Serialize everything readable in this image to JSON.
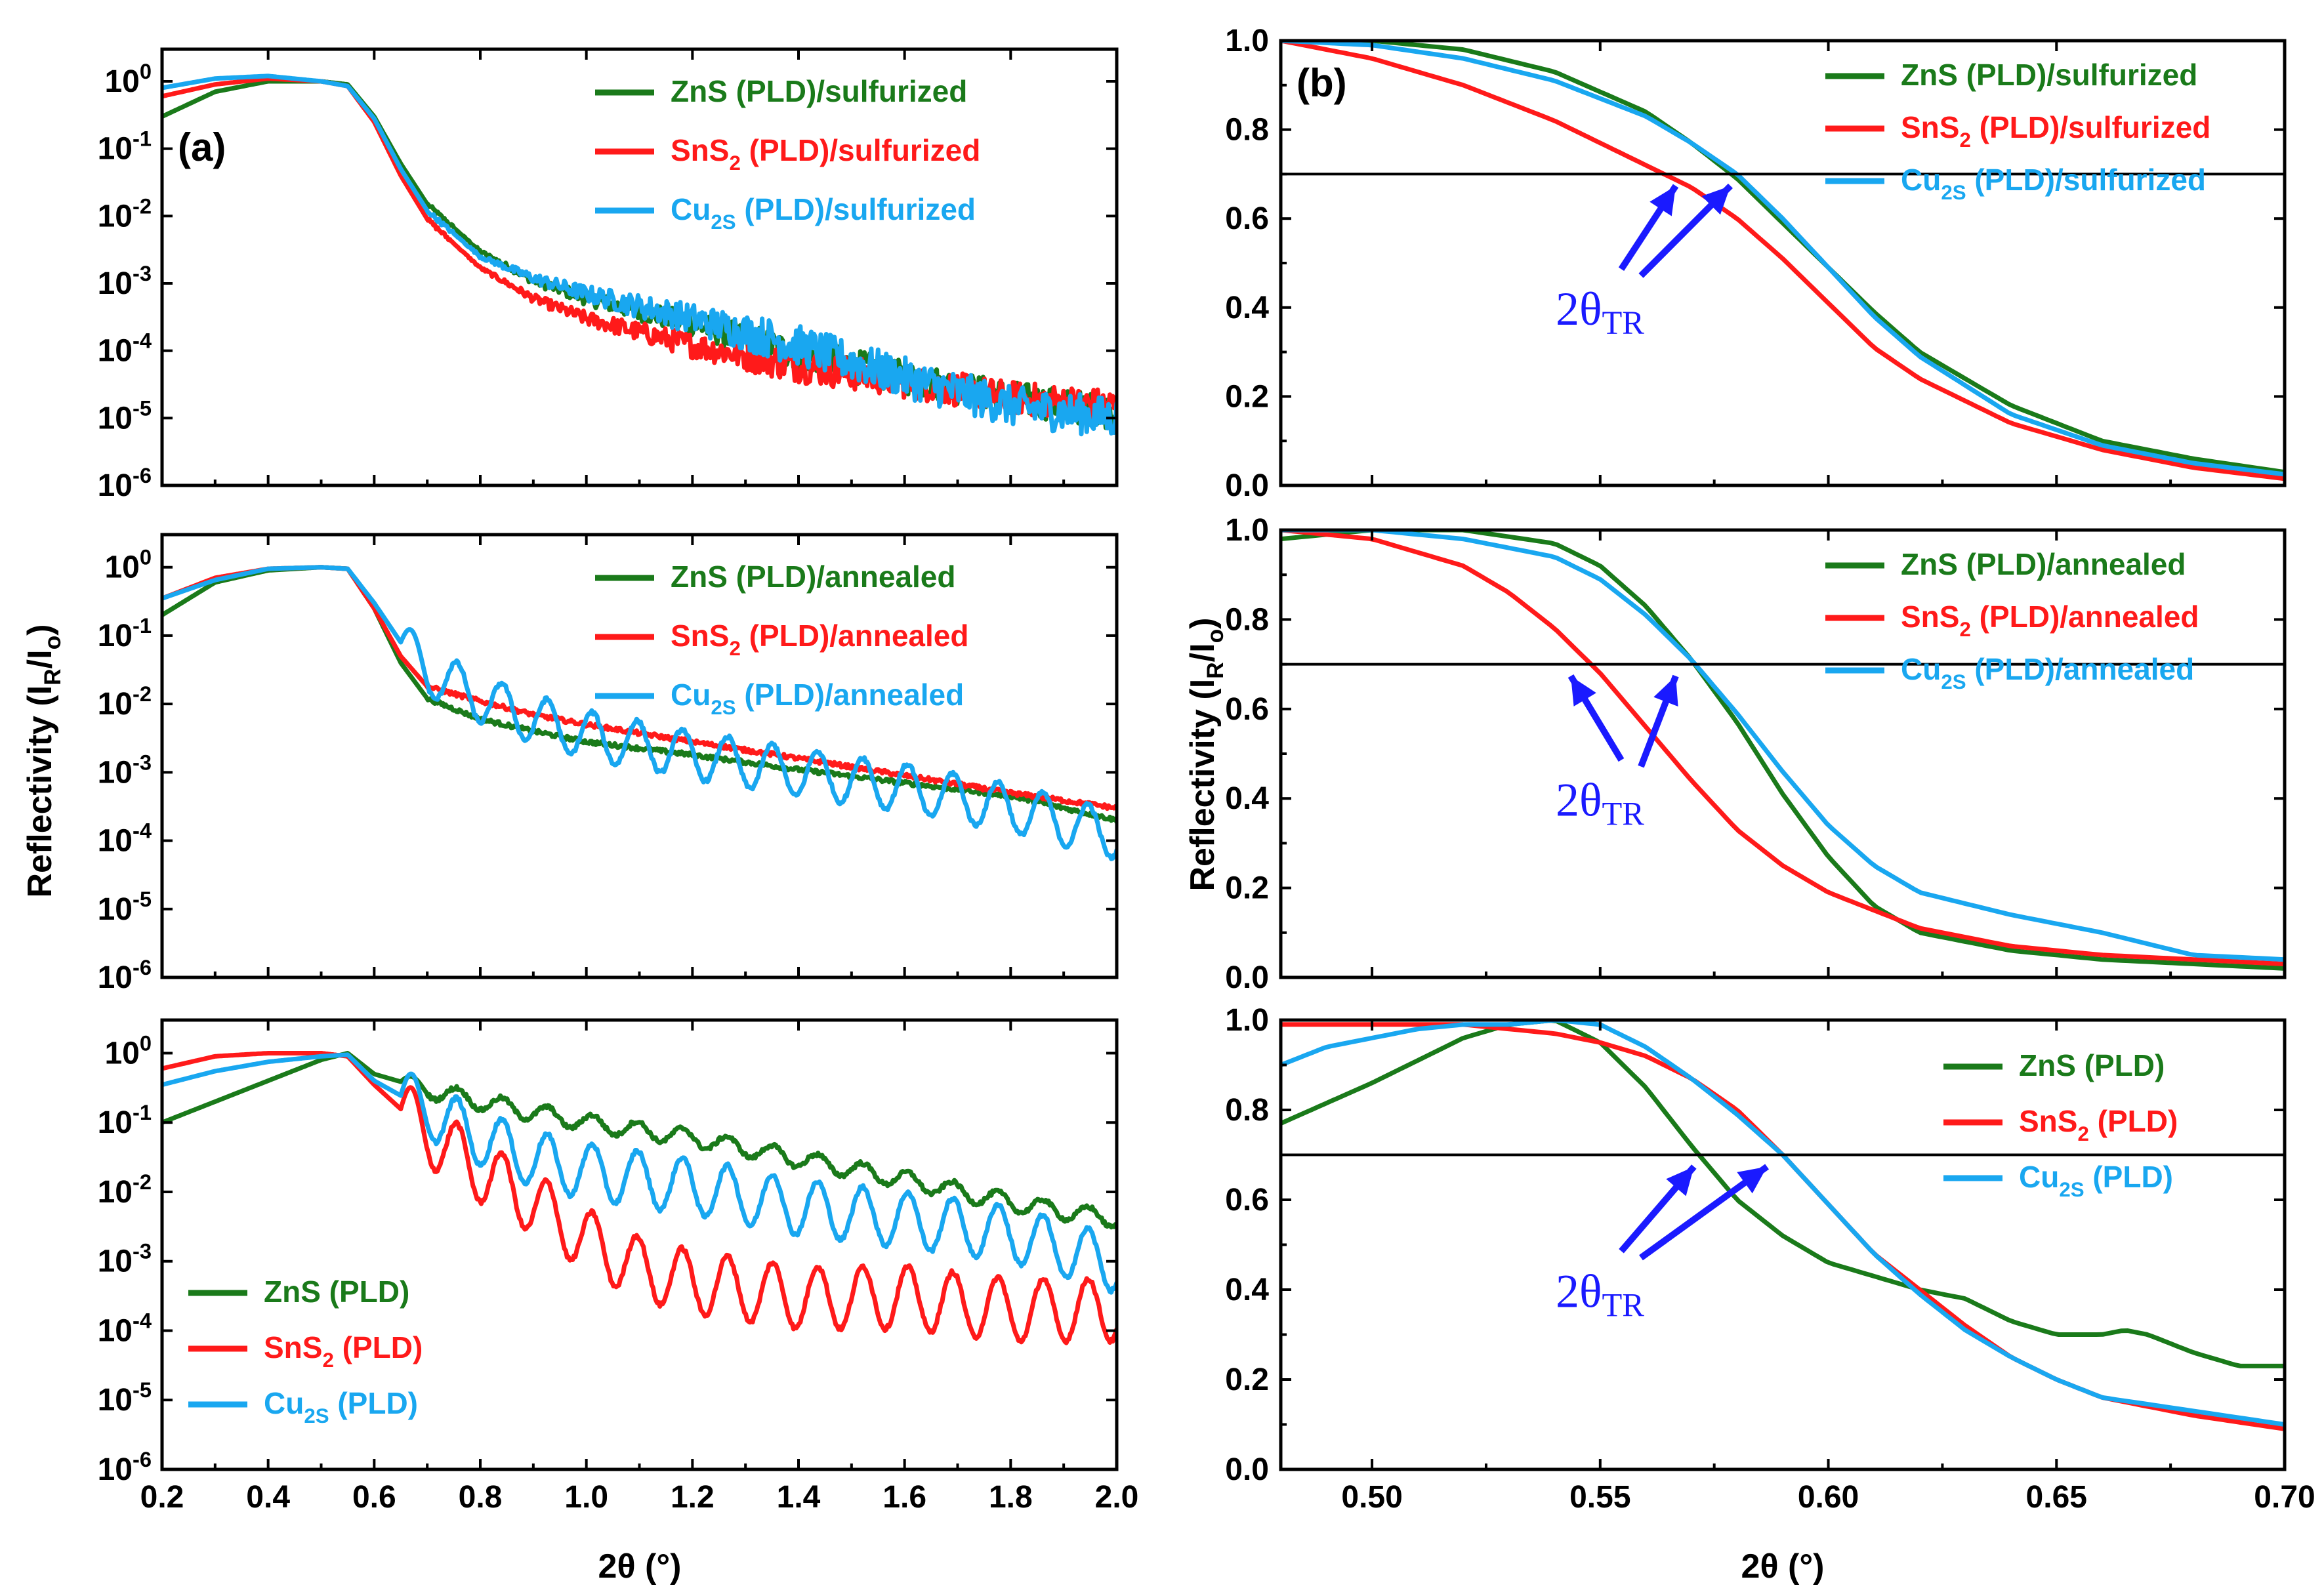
{
  "figure": {
    "xlabel_left": "2θ (°)",
    "xlabel_right": "2θ (°)",
    "ylabel_left": "Reflectivity (I_R/I_o)",
    "ylabel_right": "Reflectivity (I_R/I_o)",
    "colors": {
      "ZnS": "#1a7a1a",
      "SnS2": "#ff1a1a",
      "Cu2S": "#19a7f0",
      "annotation": "#1a1aff"
    }
  },
  "chart_data": [
    {
      "id": "a1",
      "panel_label": "(a)",
      "type": "line",
      "yscale": "log",
      "xlim": [
        0.2,
        2.0
      ],
      "ylim": [
        1e-06,
        3
      ],
      "xticks": [
        0.2,
        0.4,
        0.6,
        0.8,
        1.0,
        1.2,
        1.4,
        1.6,
        1.8,
        2.0
      ],
      "yticks": [
        1e-06,
        1e-05,
        0.0001,
        0.001,
        0.01,
        0.1,
        1
      ],
      "ytick_labels": [
        "10^-6",
        "10^-5",
        "10^-4",
        "10^-3",
        "10^-2",
        "10^-1",
        "10^0"
      ],
      "legend_position": "top-right",
      "series": [
        {
          "name": "ZnS",
          "label": "ZnS   (PLD)/sulfurized",
          "color": "ZnS",
          "x": [
            0.2,
            0.3,
            0.4,
            0.5,
            0.55,
            0.6,
            0.65,
            0.7,
            0.8,
            0.9,
            1.0,
            1.2,
            1.4,
            1.6,
            1.8,
            2.0
          ],
          "y": [
            0.3,
            0.7,
            1.0,
            1.0,
            0.9,
            0.3,
            0.06,
            0.015,
            0.003,
            0.0011,
            0.0006,
            0.00025,
            9e-05,
            4e-05,
            2e-05,
            1.2e-05
          ],
          "noise": 0.25
        },
        {
          "name": "SnS2",
          "label": "SnS_2 (PLD)/sulfurized",
          "color": "SnS2",
          "x": [
            0.2,
            0.3,
            0.4,
            0.5,
            0.55,
            0.6,
            0.65,
            0.7,
            0.8,
            0.9,
            1.0,
            1.2,
            1.4,
            1.6,
            1.8,
            2.0
          ],
          "y": [
            0.6,
            0.9,
            1.1,
            1.0,
            0.85,
            0.25,
            0.04,
            0.009,
            0.0017,
            0.0006,
            0.0003,
            0.00012,
            6e-05,
            3.5e-05,
            2e-05,
            1.5e-05
          ],
          "noise": 0.25
        },
        {
          "name": "Cu2S",
          "label": "Cu_2S (PLD)/sulfurized",
          "color": "Cu2S",
          "x": [
            0.2,
            0.3,
            0.4,
            0.5,
            0.55,
            0.6,
            0.65,
            0.7,
            0.8,
            0.9,
            1.0,
            1.2,
            1.4,
            1.6,
            1.8,
            2.0
          ],
          "y": [
            0.8,
            1.1,
            1.2,
            1.0,
            0.85,
            0.28,
            0.05,
            0.012,
            0.0025,
            0.0012,
            0.0007,
            0.0003,
            0.00012,
            4e-05,
            1.5e-05,
            1e-05
          ],
          "noise": 0.3
        }
      ]
    },
    {
      "id": "b1",
      "panel_label": "(b)",
      "type": "line",
      "yscale": "linear",
      "xlim": [
        0.48,
        0.7
      ],
      "ylim": [
        0.0,
        1.0
      ],
      "yticks": [
        0.0,
        0.2,
        0.4,
        0.6,
        0.8,
        1.0
      ],
      "ytick_labels": [
        "0.0",
        "0.2",
        "0.4",
        "0.6",
        "0.8",
        "1.0"
      ],
      "xticks": [
        0.5,
        0.55,
        0.6,
        0.65,
        0.7
      ],
      "hline": 0.7,
      "annotation": "2θ_TR",
      "arrow_targets": [
        [
          0.568,
          0.7
        ],
        [
          0.58,
          0.7
        ]
      ],
      "legend_position": "top-right",
      "series": [
        {
          "name": "ZnS",
          "label": "ZnS   (PLD)/sulfurized",
          "color": "ZnS",
          "x": [
            0.48,
            0.5,
            0.52,
            0.54,
            0.56,
            0.57,
            0.58,
            0.59,
            0.6,
            0.61,
            0.62,
            0.64,
            0.66,
            0.68,
            0.7
          ],
          "y": [
            1.0,
            1.0,
            0.98,
            0.93,
            0.84,
            0.77,
            0.69,
            0.59,
            0.49,
            0.39,
            0.3,
            0.18,
            0.1,
            0.06,
            0.03
          ]
        },
        {
          "name": "SnS2",
          "label": "SnS_2 (PLD)/sulfurized",
          "color": "SnS2",
          "x": [
            0.48,
            0.5,
            0.52,
            0.54,
            0.55,
            0.56,
            0.57,
            0.58,
            0.59,
            0.6,
            0.61,
            0.62,
            0.64,
            0.66,
            0.68,
            0.7
          ],
          "y": [
            1.0,
            0.96,
            0.9,
            0.82,
            0.77,
            0.72,
            0.67,
            0.6,
            0.51,
            0.41,
            0.31,
            0.24,
            0.14,
            0.08,
            0.04,
            0.015
          ]
        },
        {
          "name": "Cu2S",
          "label": "Cu_2S (PLD)/sulfurized",
          "color": "Cu2S",
          "x": [
            0.48,
            0.5,
            0.52,
            0.54,
            0.56,
            0.57,
            0.58,
            0.59,
            0.6,
            0.61,
            0.62,
            0.64,
            0.66,
            0.68,
            0.7
          ],
          "y": [
            1.0,
            0.99,
            0.96,
            0.91,
            0.83,
            0.77,
            0.7,
            0.6,
            0.49,
            0.38,
            0.29,
            0.16,
            0.09,
            0.05,
            0.025
          ]
        }
      ]
    },
    {
      "id": "a2",
      "panel_label": "",
      "type": "line",
      "yscale": "log",
      "xlim": [
        0.2,
        2.0
      ],
      "ylim": [
        1e-06,
        3
      ],
      "xticks": [
        0.2,
        0.4,
        0.6,
        0.8,
        1.0,
        1.2,
        1.4,
        1.6,
        1.8,
        2.0
      ],
      "yticks": [
        1e-06,
        1e-05,
        0.0001,
        0.001,
        0.01,
        0.1,
        1
      ],
      "ytick_labels": [
        "10^-6",
        "10^-5",
        "10^-4",
        "10^-3",
        "10^-2",
        "10^-1",
        "10^0"
      ],
      "legend_position": "top-right",
      "series": [
        {
          "name": "ZnS",
          "label": "ZnS   (PLD)/annealed",
          "color": "ZnS",
          "x": [
            0.2,
            0.3,
            0.4,
            0.5,
            0.55,
            0.6,
            0.65,
            0.7,
            0.8,
            0.9,
            1.0,
            1.2,
            1.4,
            1.6,
            1.8,
            2.0
          ],
          "y": [
            0.2,
            0.6,
            0.9,
            1.0,
            0.95,
            0.25,
            0.04,
            0.012,
            0.006,
            0.004,
            0.0028,
            0.0018,
            0.0011,
            0.0007,
            0.00045,
            0.0002
          ]
        },
        {
          "name": "SnS2",
          "label": "SnS_2 (PLD)/annealed",
          "color": "SnS2",
          "x": [
            0.2,
            0.3,
            0.4,
            0.5,
            0.55,
            0.6,
            0.65,
            0.7,
            0.8,
            0.9,
            1.0,
            1.2,
            1.4,
            1.6,
            1.8,
            2.0
          ],
          "y": [
            0.35,
            0.7,
            0.95,
            1.0,
            0.95,
            0.25,
            0.05,
            0.018,
            0.011,
            0.007,
            0.005,
            0.0028,
            0.0016,
            0.0009,
            0.0005,
            0.0003
          ]
        },
        {
          "name": "Cu2S",
          "label": "Cu_2S (PLD)/annealed",
          "color": "Cu2S",
          "x": [
            0.2,
            0.3,
            0.4,
            0.5,
            0.55,
            0.6,
            0.65,
            0.7,
            0.8,
            0.9,
            1.0,
            1.2,
            1.4,
            1.6,
            1.8,
            2.0
          ],
          "y": [
            0.35,
            0.65,
            0.95,
            1.0,
            0.95,
            0.3,
            0.08,
            0.03,
            0.012,
            0.006,
            0.0035,
            0.0018,
            0.001,
            0.0006,
            0.0003,
            0.00012
          ],
          "osc": 0.35
        }
      ]
    },
    {
      "id": "b2",
      "panel_label": "",
      "type": "line",
      "yscale": "linear",
      "xlim": [
        0.48,
        0.7
      ],
      "ylim": [
        0.0,
        1.0
      ],
      "yticks": [
        0.0,
        0.2,
        0.4,
        0.6,
        0.8,
        1.0
      ],
      "ytick_labels": [
        "0.0",
        "0.2",
        "0.4",
        "0.6",
        "0.8",
        "1.0"
      ],
      "xticks": [
        0.5,
        0.55,
        0.6,
        0.65,
        0.7
      ],
      "hline": 0.7,
      "annotation": "2θ_TR",
      "arrow_targets": [
        [
          0.545,
          0.7
        ],
        [
          0.568,
          0.7
        ]
      ],
      "legend_position": "top-right",
      "series": [
        {
          "name": "ZnS",
          "label": "ZnS   (PLD)/annealed",
          "color": "ZnS",
          "x": [
            0.48,
            0.5,
            0.52,
            0.54,
            0.55,
            0.56,
            0.57,
            0.58,
            0.59,
            0.6,
            0.61,
            0.62,
            0.64,
            0.66,
            0.68,
            0.7
          ],
          "y": [
            0.98,
            1.0,
            1.0,
            0.97,
            0.92,
            0.83,
            0.71,
            0.57,
            0.41,
            0.27,
            0.16,
            0.1,
            0.06,
            0.04,
            0.03,
            0.02
          ]
        },
        {
          "name": "SnS2",
          "label": "SnS_2 (PLD)/annealed",
          "color": "SnS2",
          "x": [
            0.48,
            0.5,
            0.52,
            0.53,
            0.54,
            0.55,
            0.56,
            0.57,
            0.58,
            0.59,
            0.6,
            0.61,
            0.62,
            0.64,
            0.66,
            0.68,
            0.7
          ],
          "y": [
            1.0,
            0.98,
            0.92,
            0.86,
            0.78,
            0.68,
            0.56,
            0.44,
            0.33,
            0.25,
            0.19,
            0.15,
            0.11,
            0.07,
            0.05,
            0.04,
            0.03
          ]
        },
        {
          "name": "Cu2S",
          "label": "Cu_2S (PLD)/annealed",
          "color": "Cu2S",
          "x": [
            0.48,
            0.49,
            0.5,
            0.52,
            0.54,
            0.55,
            0.56,
            0.57,
            0.58,
            0.59,
            0.6,
            0.61,
            0.62,
            0.64,
            0.66,
            0.68,
            0.7
          ],
          "y": [
            1.0,
            1.0,
            1.0,
            0.98,
            0.94,
            0.89,
            0.81,
            0.71,
            0.59,
            0.46,
            0.34,
            0.25,
            0.19,
            0.14,
            0.1,
            0.05,
            0.04
          ]
        }
      ]
    },
    {
      "id": "a3",
      "panel_label": "",
      "type": "line",
      "yscale": "log",
      "xlim": [
        0.2,
        2.0
      ],
      "ylim": [
        1e-06,
        3
      ],
      "xticks": [
        0.2,
        0.4,
        0.6,
        0.8,
        1.0,
        1.2,
        1.4,
        1.6,
        1.8,
        2.0
      ],
      "xtick_labels": [
        "0.2",
        "0.4",
        "0.6",
        "0.8",
        "1.0",
        "1.2",
        "1.4",
        "1.6",
        "1.8",
        "2.0"
      ],
      "yticks": [
        1e-06,
        1e-05,
        0.0001,
        0.001,
        0.01,
        0.1,
        1
      ],
      "ytick_labels": [
        "10^-6",
        "10^-5",
        "10^-4",
        "10^-3",
        "10^-2",
        "10^-1",
        "10^0"
      ],
      "legend_position": "bottom-left",
      "series": [
        {
          "name": "ZnS",
          "label": "ZnS   (PLD)",
          "color": "ZnS",
          "x": [
            0.2,
            0.3,
            0.4,
            0.5,
            0.55,
            0.6,
            0.7,
            0.8,
            0.9,
            1.0,
            1.2,
            1.4,
            1.6,
            1.8,
            2.0
          ],
          "y": [
            0.1,
            0.2,
            0.4,
            0.8,
            1.0,
            0.5,
            0.3,
            0.2,
            0.14,
            0.1,
            0.06,
            0.03,
            0.015,
            0.007,
            0.004
          ],
          "osc": 0.12
        },
        {
          "name": "SnS2",
          "label": "SnS_2 (PLD)",
          "color": "SnS2",
          "x": [
            0.2,
            0.3,
            0.4,
            0.5,
            0.55,
            0.6,
            0.7,
            0.8,
            0.9,
            1.0,
            1.1,
            1.2,
            1.4,
            1.6,
            1.8,
            2.0
          ],
          "y": [
            0.6,
            0.9,
            1.0,
            1.0,
            0.9,
            0.35,
            0.07,
            0.02,
            0.007,
            0.002,
            0.0008,
            0.0005,
            0.0003,
            0.0003,
            0.0002,
            0.0002
          ],
          "osc": 0.45
        },
        {
          "name": "Cu2S",
          "label": "Cu_2S (PLD)",
          "color": "Cu2S",
          "x": [
            0.2,
            0.3,
            0.4,
            0.5,
            0.55,
            0.6,
            0.7,
            0.8,
            0.9,
            1.0,
            1.2,
            1.4,
            1.6,
            1.8,
            2.0
          ],
          "y": [
            0.35,
            0.55,
            0.75,
            0.9,
            0.95,
            0.4,
            0.15,
            0.06,
            0.03,
            0.02,
            0.012,
            0.006,
            0.004,
            0.0025,
            0.0009
          ],
          "osc": 0.4
        }
      ]
    },
    {
      "id": "b3",
      "panel_label": "",
      "type": "line",
      "yscale": "linear",
      "xlim": [
        0.48,
        0.7
      ],
      "ylim": [
        0.0,
        1.0
      ],
      "yticks": [
        0.0,
        0.2,
        0.4,
        0.6,
        0.8,
        1.0
      ],
      "ytick_labels": [
        "0.0",
        "0.2",
        "0.4",
        "0.6",
        "0.8",
        "1.0"
      ],
      "xticks": [
        0.5,
        0.55,
        0.6,
        0.65,
        0.7
      ],
      "xtick_labels": [
        "0.50",
        "0.55",
        "0.60",
        "0.65",
        "0.70"
      ],
      "hline": 0.7,
      "annotation": "2θ_TR",
      "arrow_targets": [
        [
          0.572,
          0.7
        ],
        [
          0.588,
          0.7
        ]
      ],
      "legend_position": "top-right",
      "series": [
        {
          "name": "ZnS",
          "label": "ZnS   (PLD)",
          "color": "ZnS",
          "x": [
            0.48,
            0.5,
            0.51,
            0.52,
            0.53,
            0.54,
            0.55,
            0.56,
            0.57,
            0.58,
            0.59,
            0.6,
            0.61,
            0.62,
            0.63,
            0.64,
            0.65,
            0.66,
            0.665,
            0.67,
            0.68,
            0.69,
            0.7
          ],
          "y": [
            0.77,
            0.86,
            0.91,
            0.96,
            0.99,
            1.0,
            0.95,
            0.85,
            0.72,
            0.6,
            0.52,
            0.46,
            0.43,
            0.4,
            0.38,
            0.33,
            0.3,
            0.3,
            0.31,
            0.3,
            0.26,
            0.23,
            0.23
          ]
        },
        {
          "name": "SnS2",
          "label": "SnS_2 (PLD)",
          "color": "SnS2",
          "x": [
            0.48,
            0.5,
            0.52,
            0.53,
            0.54,
            0.55,
            0.56,
            0.57,
            0.58,
            0.59,
            0.6,
            0.61,
            0.62,
            0.63,
            0.64,
            0.65,
            0.66,
            0.68,
            0.7
          ],
          "y": [
            0.99,
            0.99,
            0.99,
            0.98,
            0.97,
            0.95,
            0.92,
            0.87,
            0.8,
            0.7,
            0.59,
            0.48,
            0.4,
            0.32,
            0.25,
            0.2,
            0.16,
            0.12,
            0.09
          ]
        },
        {
          "name": "Cu2S",
          "label": "Cu_2S (PLD)",
          "color": "Cu2S",
          "x": [
            0.48,
            0.49,
            0.5,
            0.51,
            0.52,
            0.53,
            0.54,
            0.55,
            0.56,
            0.57,
            0.58,
            0.59,
            0.6,
            0.61,
            0.62,
            0.63,
            0.64,
            0.65,
            0.66,
            0.68,
            0.7
          ],
          "y": [
            0.9,
            0.94,
            0.96,
            0.98,
            0.99,
            0.99,
            1.0,
            0.99,
            0.94,
            0.87,
            0.79,
            0.7,
            0.59,
            0.48,
            0.39,
            0.31,
            0.25,
            0.2,
            0.16,
            0.13,
            0.1
          ]
        }
      ]
    }
  ]
}
